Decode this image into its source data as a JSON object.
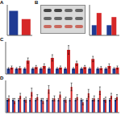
{
  "panels": [
    "A",
    "B",
    "C",
    "D"
  ],
  "chart_data": [
    {
      "type": "bar",
      "categories": [
        null,
        null
      ],
      "values": [
        1.2,
        0.8
      ],
      "colors": [
        "#1f3a93",
        "#d62728"
      ],
      "ylim": [
        0,
        1.5
      ],
      "yticks": [
        0,
        0.5,
        1,
        1.5
      ],
      "grid": false,
      "tick_labels": false
    },
    {
      "type": "bar",
      "categories": [
        null,
        null
      ],
      "series": [
        {
          "color": "#1f3a93",
          "values": [
            1.0,
            1.0
          ]
        },
        {
          "color": "#d62728",
          "values": [
            2.2,
            1.8
          ]
        }
      ],
      "ylim": [
        0,
        3
      ],
      "yticks": [
        0,
        1,
        2,
        3
      ],
      "grid": false,
      "tick_labels": false
    },
    {
      "type": "bar",
      "categories": [
        null,
        null,
        null,
        null,
        null,
        null,
        null,
        null,
        null,
        null,
        null,
        null,
        null,
        null
      ],
      "series": [
        {
          "color": "#1f3a93",
          "values": [
            1,
            1,
            1,
            1,
            1,
            1,
            1,
            1,
            1,
            1,
            1,
            1,
            1,
            1
          ],
          "errors": [
            0.2,
            0.2,
            0.2,
            0.2,
            0.2,
            0.2,
            0.2,
            0.2,
            0.2,
            0.2,
            0.2,
            0.2,
            0.2,
            0.2
          ]
        },
        {
          "color": "#d62728",
          "values": [
            1.2,
            1.1,
            2.5,
            1.3,
            1.5,
            3.0,
            1.2,
            4.5,
            2.0,
            1.3,
            2.8,
            1.1,
            1.5,
            1.2
          ],
          "errors": [
            0.3,
            0.3,
            0.5,
            0.3,
            0.4,
            0.6,
            0.3,
            0.8,
            0.4,
            0.3,
            0.5,
            0.3,
            0.4,
            0.3
          ]
        }
      ],
      "ylim": [
        0,
        6
      ],
      "yticks": [
        0,
        2,
        4,
        6
      ],
      "grid": false,
      "tick_labels": false
    },
    {
      "type": "bar",
      "categories": [
        null,
        null,
        null,
        null,
        null,
        null,
        null,
        null,
        null,
        null,
        null,
        null,
        null,
        null,
        null,
        null,
        null,
        null,
        null,
        null
      ],
      "series": [
        {
          "color": "#1f3a93",
          "values": [
            1,
            1,
            1,
            1,
            1,
            1,
            1,
            1,
            1,
            1,
            1,
            1,
            1,
            1,
            1,
            1,
            1,
            1,
            1,
            1
          ],
          "errors": [
            0.1,
            0.1,
            0.1,
            0.1,
            0.1,
            0.1,
            0.1,
            0.1,
            0.1,
            0.1,
            0.1,
            0.1,
            0.1,
            0.1,
            0.1,
            0.1,
            0.1,
            0.1,
            0.1,
            0.1
          ]
        },
        {
          "color": "#d62728",
          "values": [
            1.1,
            0.9,
            1.3,
            1.0,
            1.6,
            1.2,
            0.9,
            1.8,
            1.1,
            1.4,
            1.0,
            2.0,
            1.2,
            0.8,
            1.5,
            1.1,
            1.7,
            1.0,
            1.3,
            1.2
          ],
          "errors": [
            0.2,
            0.2,
            0.2,
            0.2,
            0.3,
            0.2,
            0.2,
            0.3,
            0.2,
            0.2,
            0.2,
            0.3,
            0.2,
            0.2,
            0.3,
            0.2,
            0.3,
            0.2,
            0.2,
            0.2
          ]
        }
      ],
      "ylim": [
        0,
        2.5
      ],
      "yticks": [
        0,
        1,
        2
      ],
      "grid": false,
      "tick_labels": false
    }
  ]
}
